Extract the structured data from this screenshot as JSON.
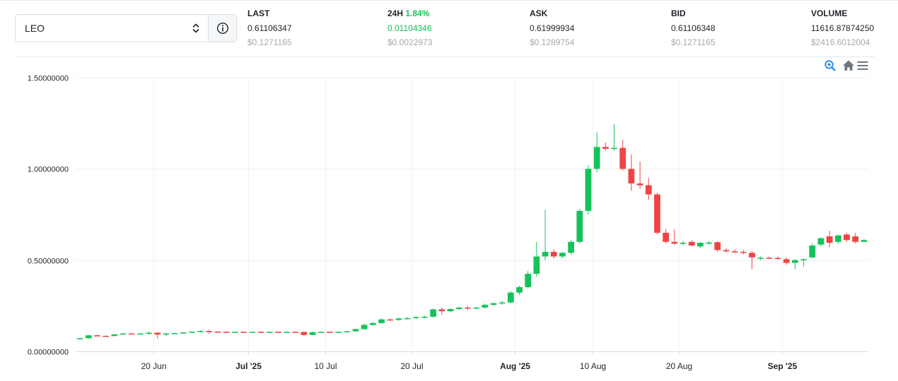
{
  "selector": {
    "value": "LEO"
  },
  "stats": {
    "last": {
      "label": "LAST",
      "value": "0.61106347",
      "usd": "$0.1271165"
    },
    "change": {
      "label": "24H",
      "pct": "1.84%",
      "value": "0.01104346",
      "usd": "$0.0022973"
    },
    "ask": {
      "label": "ASK",
      "value": "0.61999934",
      "usd": "$0.1289754"
    },
    "bid": {
      "label": "BID",
      "value": "0.61106348",
      "usd": "$0.1271165"
    },
    "volume": {
      "label": "VOLUME",
      "value": "11616.87874250",
      "usd": "$2416.6012004"
    }
  },
  "toolbar": {
    "zoom_icon": "zoom-in-icon",
    "home_icon": "home-icon",
    "menu_icon": "menu-icon"
  },
  "colors": {
    "up": "#16c25a",
    "down": "#ef4444",
    "grid": "#eef0f3",
    "text": "#1f2328",
    "muted": "#a5a9b0",
    "accent": "#1e88e5"
  },
  "chart_data": {
    "type": "candlestick",
    "title": "",
    "xlabel": "",
    "ylabel": "",
    "ylim": [
      0,
      1.5
    ],
    "yticks": [
      {
        "value": 0.0,
        "label": "0.00000000"
      },
      {
        "value": 0.5,
        "label": "0.50000000"
      },
      {
        "value": 1.0,
        "label": "1.00000000"
      },
      {
        "value": 1.5,
        "label": "1.50000000"
      }
    ],
    "xlim": [
      "2025-06-11",
      "2025-09-11"
    ],
    "xticks": [
      {
        "date": "2025-06-20",
        "label": "20 Jun",
        "bold": false
      },
      {
        "date": "2025-07-01",
        "label": "Jul '25",
        "bold": true
      },
      {
        "date": "2025-07-10",
        "label": "10 Jul",
        "bold": false
      },
      {
        "date": "2025-07-20",
        "label": "20 Jul",
        "bold": false
      },
      {
        "date": "2025-08-01",
        "label": "Aug '25",
        "bold": true
      },
      {
        "date": "2025-08-10",
        "label": "10 Aug",
        "bold": false
      },
      {
        "date": "2025-08-20",
        "label": "20 Aug",
        "bold": false
      },
      {
        "date": "2025-09-01",
        "label": "Sep '25",
        "bold": true
      }
    ],
    "start_date": "2025-06-11",
    "candles": [
      [
        0.07,
        0.075,
        0.068,
        0.072
      ],
      [
        0.072,
        0.09,
        0.07,
        0.088
      ],
      [
        0.088,
        0.092,
        0.082,
        0.085
      ],
      [
        0.085,
        0.088,
        0.08,
        0.084
      ],
      [
        0.084,
        0.095,
        0.082,
        0.093
      ],
      [
        0.093,
        0.1,
        0.09,
        0.098
      ],
      [
        0.098,
        0.101,
        0.095,
        0.097
      ],
      [
        0.097,
        0.1,
        0.094,
        0.098
      ],
      [
        0.098,
        0.11,
        0.09,
        0.102
      ],
      [
        0.102,
        0.105,
        0.07,
        0.092
      ],
      [
        0.092,
        0.101,
        0.085,
        0.098
      ],
      [
        0.098,
        0.102,
        0.094,
        0.1
      ],
      [
        0.1,
        0.106,
        0.096,
        0.104
      ],
      [
        0.104,
        0.11,
        0.1,
        0.108
      ],
      [
        0.108,
        0.116,
        0.104,
        0.112
      ],
      [
        0.112,
        0.118,
        0.095,
        0.108
      ],
      [
        0.108,
        0.111,
        0.104,
        0.107
      ],
      [
        0.107,
        0.11,
        0.104,
        0.106
      ],
      [
        0.106,
        0.109,
        0.103,
        0.107
      ],
      [
        0.107,
        0.11,
        0.104,
        0.106
      ],
      [
        0.106,
        0.109,
        0.103,
        0.107
      ],
      [
        0.107,
        0.11,
        0.104,
        0.106
      ],
      [
        0.106,
        0.11,
        0.103,
        0.107
      ],
      [
        0.107,
        0.11,
        0.104,
        0.106
      ],
      [
        0.106,
        0.109,
        0.103,
        0.107
      ],
      [
        0.107,
        0.11,
        0.104,
        0.106
      ],
      [
        0.106,
        0.11,
        0.085,
        0.09
      ],
      [
        0.09,
        0.108,
        0.088,
        0.105
      ],
      [
        0.105,
        0.109,
        0.102,
        0.107
      ],
      [
        0.107,
        0.11,
        0.104,
        0.106
      ],
      [
        0.106,
        0.11,
        0.103,
        0.107
      ],
      [
        0.107,
        0.113,
        0.104,
        0.11
      ],
      [
        0.11,
        0.125,
        0.108,
        0.122
      ],
      [
        0.122,
        0.15,
        0.118,
        0.145
      ],
      [
        0.145,
        0.16,
        0.14,
        0.155
      ],
      [
        0.155,
        0.18,
        0.15,
        0.175
      ],
      [
        0.175,
        0.18,
        0.168,
        0.172
      ],
      [
        0.172,
        0.185,
        0.168,
        0.18
      ],
      [
        0.18,
        0.188,
        0.175,
        0.182
      ],
      [
        0.182,
        0.192,
        0.178,
        0.188
      ],
      [
        0.188,
        0.195,
        0.182,
        0.19
      ],
      [
        0.19,
        0.235,
        0.185,
        0.23
      ],
      [
        0.23,
        0.24,
        0.2,
        0.22
      ],
      [
        0.22,
        0.236,
        0.214,
        0.232
      ],
      [
        0.232,
        0.245,
        0.225,
        0.24
      ],
      [
        0.24,
        0.25,
        0.228,
        0.235
      ],
      [
        0.235,
        0.244,
        0.23,
        0.24
      ],
      [
        0.24,
        0.262,
        0.235,
        0.255
      ],
      [
        0.255,
        0.268,
        0.248,
        0.264
      ],
      [
        0.264,
        0.275,
        0.255,
        0.268
      ],
      [
        0.268,
        0.33,
        0.262,
        0.322
      ],
      [
        0.322,
        0.36,
        0.31,
        0.352
      ],
      [
        0.352,
        0.44,
        0.345,
        0.425
      ],
      [
        0.425,
        0.6,
        0.41,
        0.52
      ],
      [
        0.52,
        0.775,
        0.5,
        0.545
      ],
      [
        0.545,
        0.56,
        0.51,
        0.52
      ],
      [
        0.52,
        0.545,
        0.51,
        0.54
      ],
      [
        0.54,
        0.61,
        0.53,
        0.6
      ],
      [
        0.6,
        0.78,
        0.59,
        0.77
      ],
      [
        0.77,
        1.02,
        0.75,
        1.0
      ],
      [
        1.0,
        1.2,
        0.98,
        1.12
      ],
      [
        1.12,
        1.145,
        1.1,
        1.11
      ],
      [
        1.11,
        1.245,
        1.1,
        1.115
      ],
      [
        1.115,
        1.16,
        0.99,
        1.0
      ],
      [
        1.0,
        1.08,
        0.88,
        0.92
      ],
      [
        0.92,
        1.04,
        0.89,
        0.91
      ],
      [
        0.91,
        0.95,
        0.83,
        0.86
      ],
      [
        0.86,
        0.87,
        0.64,
        0.65
      ],
      [
        0.65,
        0.67,
        0.59,
        0.6
      ],
      [
        0.6,
        0.67,
        0.585,
        0.59
      ],
      [
        0.59,
        0.605,
        0.58,
        0.595
      ],
      [
        0.6,
        0.61,
        0.575,
        0.58
      ],
      [
        0.575,
        0.598,
        0.565,
        0.595
      ],
      [
        0.592,
        0.605,
        0.585,
        0.596
      ],
      [
        0.598,
        0.604,
        0.545,
        0.555
      ],
      [
        0.555,
        0.565,
        0.54,
        0.548
      ],
      [
        0.548,
        0.56,
        0.54,
        0.545
      ],
      [
        0.545,
        0.556,
        0.532,
        0.54
      ],
      [
        0.54,
        0.548,
        0.45,
        0.515
      ],
      [
        0.51,
        0.52,
        0.5,
        0.513
      ],
      [
        0.513,
        0.52,
        0.505,
        0.512
      ],
      [
        0.512,
        0.52,
        0.5,
        0.51
      ],
      [
        0.505,
        0.515,
        0.475,
        0.485
      ],
      [
        0.485,
        0.505,
        0.45,
        0.5
      ],
      [
        0.5,
        0.51,
        0.465,
        0.505
      ],
      [
        0.515,
        0.59,
        0.51,
        0.58
      ],
      [
        0.585,
        0.625,
        0.575,
        0.62
      ],
      [
        0.63,
        0.66,
        0.57,
        0.595
      ],
      [
        0.6,
        0.64,
        0.59,
        0.635
      ],
      [
        0.64,
        0.65,
        0.6,
        0.61
      ],
      [
        0.63,
        0.65,
        0.59,
        0.6
      ],
      [
        0.6,
        0.615,
        0.598,
        0.61
      ]
    ]
  }
}
